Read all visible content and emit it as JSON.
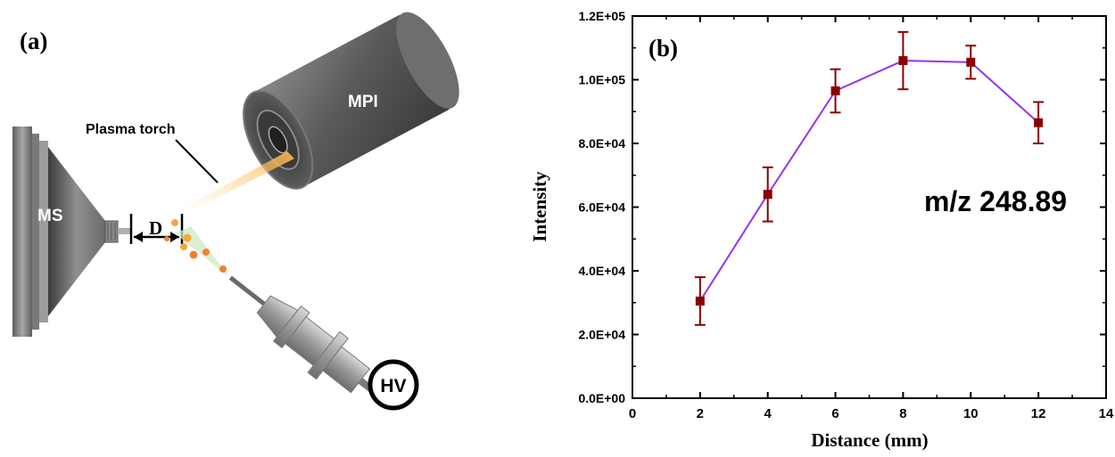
{
  "panel_a": {
    "label": "(a)",
    "mpi_label": "MPI",
    "ms_label": "MS",
    "distance_label": "D",
    "torch_label": "Plasma torch",
    "hv_label": "HV"
  },
  "panel_b": {
    "label": "(b)",
    "annotation": "m/z 248.89"
  },
  "chart_data": {
    "type": "line",
    "xlabel": "Distance (mm)",
    "ylabel": "Intensity",
    "xlim": [
      0,
      14
    ],
    "ylim": [
      0,
      120000
    ],
    "x_ticks": [
      "0",
      "2",
      "4",
      "6",
      "8",
      "10",
      "12",
      "14"
    ],
    "y_ticks": [
      "0.0E+00",
      "2.0E+04",
      "4.0E+04",
      "6.0E+04",
      "8.0E+04",
      "1.0E+05",
      "1.2E+05"
    ],
    "series": [
      {
        "x": [
          2,
          4,
          6,
          8,
          10,
          12
        ],
        "values": [
          30500,
          64000,
          96500,
          106000,
          105500,
          86500
        ],
        "error": [
          7500,
          8500,
          6800,
          9000,
          5200,
          6500
        ],
        "line_color": "#9933ee",
        "marker_color": "#8b0000"
      }
    ],
    "annotations": [
      "m/z 248.89"
    ],
    "grid": false,
    "legend": "none"
  }
}
